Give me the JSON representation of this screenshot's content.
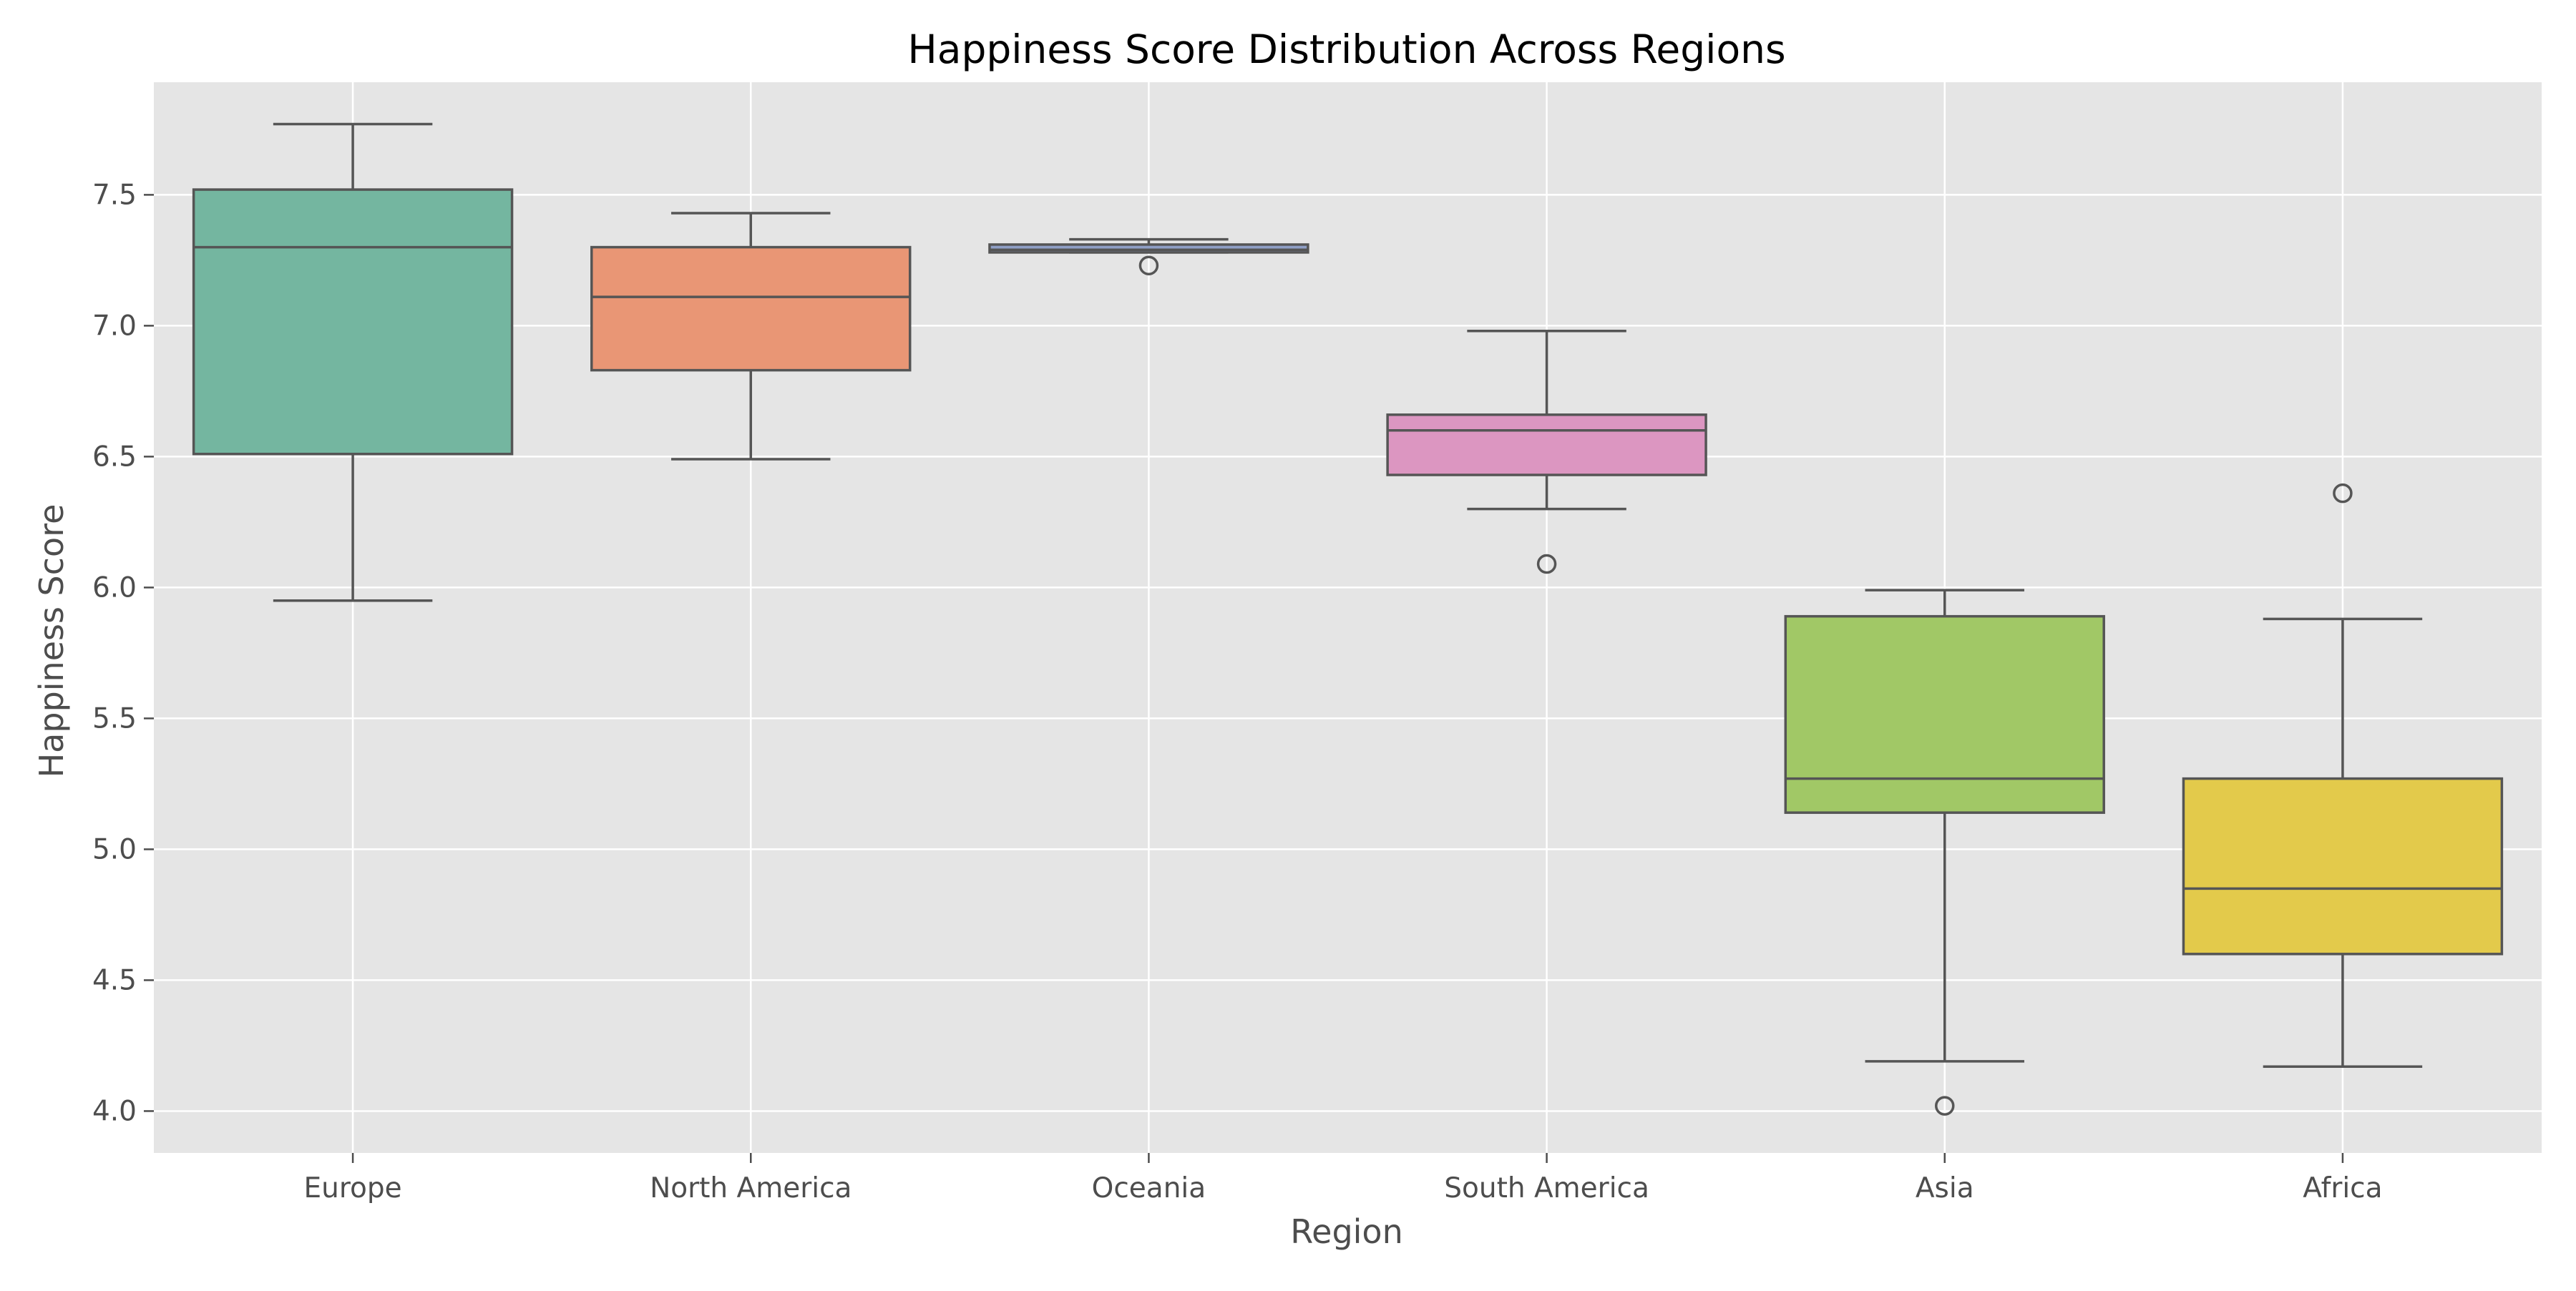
{
  "chart_data": {
    "type": "box",
    "title": "Happiness Score Distribution Across Regions",
    "xlabel": "Region",
    "ylabel": "Happiness Score",
    "ylim": [
      3.84,
      7.93
    ],
    "yticks": [
      "4.0",
      "4.5",
      "5.0",
      "5.5",
      "6.0",
      "6.5",
      "7.0",
      "7.5"
    ],
    "grid": true,
    "background": "#e5e5e5",
    "grid_color": "#ffffff",
    "line_color": "#555555",
    "categories": [
      "Europe",
      "North America",
      "Oceania",
      "South America",
      "Asia",
      "Africa"
    ],
    "boxes": [
      {
        "category": "Europe",
        "color": "#74b6a0",
        "whisker_low": 5.95,
        "q1": 6.51,
        "median": 7.3,
        "q3": 7.52,
        "whisker_high": 7.77,
        "outliers": []
      },
      {
        "category": "North America",
        "color": "#e99675",
        "whisker_low": 6.49,
        "q1": 6.83,
        "median": 7.11,
        "q3": 7.3,
        "whisker_high": 7.43,
        "outliers": []
      },
      {
        "category": "Oceania",
        "color": "#8f9fc6",
        "whisker_low": 7.28,
        "q1": 7.28,
        "median": 7.29,
        "q3": 7.31,
        "whisker_high": 7.33,
        "outliers": [
          7.23
        ]
      },
      {
        "category": "South America",
        "color": "#dc96c1",
        "whisker_low": 6.3,
        "q1": 6.43,
        "median": 6.6,
        "q3": 6.66,
        "whisker_high": 6.98,
        "outliers": [
          6.09
        ]
      },
      {
        "category": "Asia",
        "color": "#a1c866",
        "whisker_low": 4.19,
        "q1": 5.14,
        "median": 5.27,
        "q3": 5.89,
        "whisker_high": 5.99,
        "outliers": [
          4.02
        ]
      },
      {
        "category": "Africa",
        "color": "#e3ca4b",
        "whisker_low": 4.17,
        "q1": 4.6,
        "median": 4.85,
        "q3": 5.27,
        "whisker_high": 5.88,
        "outliers": [
          6.36
        ]
      }
    ]
  }
}
